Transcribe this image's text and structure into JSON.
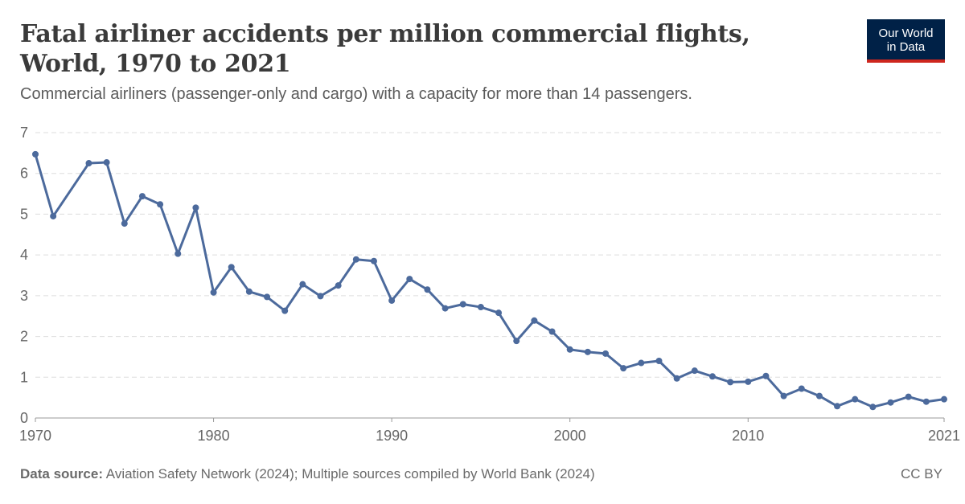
{
  "header": {
    "title": "Fatal airliner accidents per million commercial flights, World, 1970 to 2021",
    "subtitle": "Commercial airliners (passenger-only and cargo) with a capacity for more than 14 passengers."
  },
  "logo": {
    "line1": "Our World",
    "line2": "in Data"
  },
  "footer": {
    "source_label": "Data source:",
    "source_text": "Aviation Safety Network (2024); Multiple sources compiled by World Bank (2024)",
    "license": "CC BY"
  },
  "colors": {
    "line": "#4c6a9c",
    "grid": "#dddddd",
    "logo_bg": "#002147",
    "logo_accent": "#ce261e"
  },
  "chart_data": {
    "type": "line",
    "title": "Fatal airliner accidents per million commercial flights, World, 1970 to 2021",
    "subtitle": "Commercial airliners (passenger-only and cargo) with a capacity for more than 14 passengers.",
    "xlabel": "",
    "ylabel": "",
    "xlim": [
      1970,
      2021
    ],
    "ylim": [
      0,
      7
    ],
    "x_ticks": [
      1970,
      1980,
      1990,
      2000,
      2010,
      2021
    ],
    "x_tick_labels": [
      "1970",
      "1980",
      "1990",
      "2000",
      "2010",
      "2021"
    ],
    "y_ticks": [
      0,
      1,
      2,
      3,
      4,
      5,
      6,
      7
    ],
    "y_tick_labels": [
      "0",
      "1",
      "2",
      "3",
      "4",
      "5",
      "6",
      "7"
    ],
    "grid": true,
    "series": [
      {
        "x": [
          1970,
          1971,
          1973,
          1974,
          1975,
          1976,
          1977,
          1978,
          1979,
          1980,
          1981,
          1982,
          1983,
          1984,
          1985,
          1986,
          1987,
          1988,
          1989,
          1990,
          1991,
          1992,
          1993,
          1994,
          1995,
          1996,
          1997,
          1998,
          1999,
          2000,
          2001,
          2002,
          2003,
          2004,
          2005,
          2006,
          2007,
          2008,
          2009,
          2010,
          2011,
          2012,
          2013,
          2014,
          2015,
          2016,
          2017,
          2018,
          2019,
          2020,
          2021
        ],
        "y": [
          6.47,
          4.95,
          6.25,
          6.27,
          4.77,
          5.44,
          5.24,
          4.03,
          5.16,
          3.08,
          3.7,
          3.1,
          2.97,
          2.63,
          3.28,
          2.99,
          3.25,
          3.89,
          3.85,
          2.88,
          3.41,
          3.15,
          2.69,
          2.79,
          2.72,
          2.58,
          1.89,
          2.39,
          2.12,
          1.68,
          1.62,
          1.58,
          1.22,
          1.35,
          1.4,
          0.97,
          1.16,
          1.02,
          0.88,
          0.89,
          1.03,
          0.54,
          0.72,
          0.54,
          0.29,
          0.46,
          0.27,
          0.38,
          0.52,
          0.4,
          0.46
        ]
      }
    ]
  }
}
